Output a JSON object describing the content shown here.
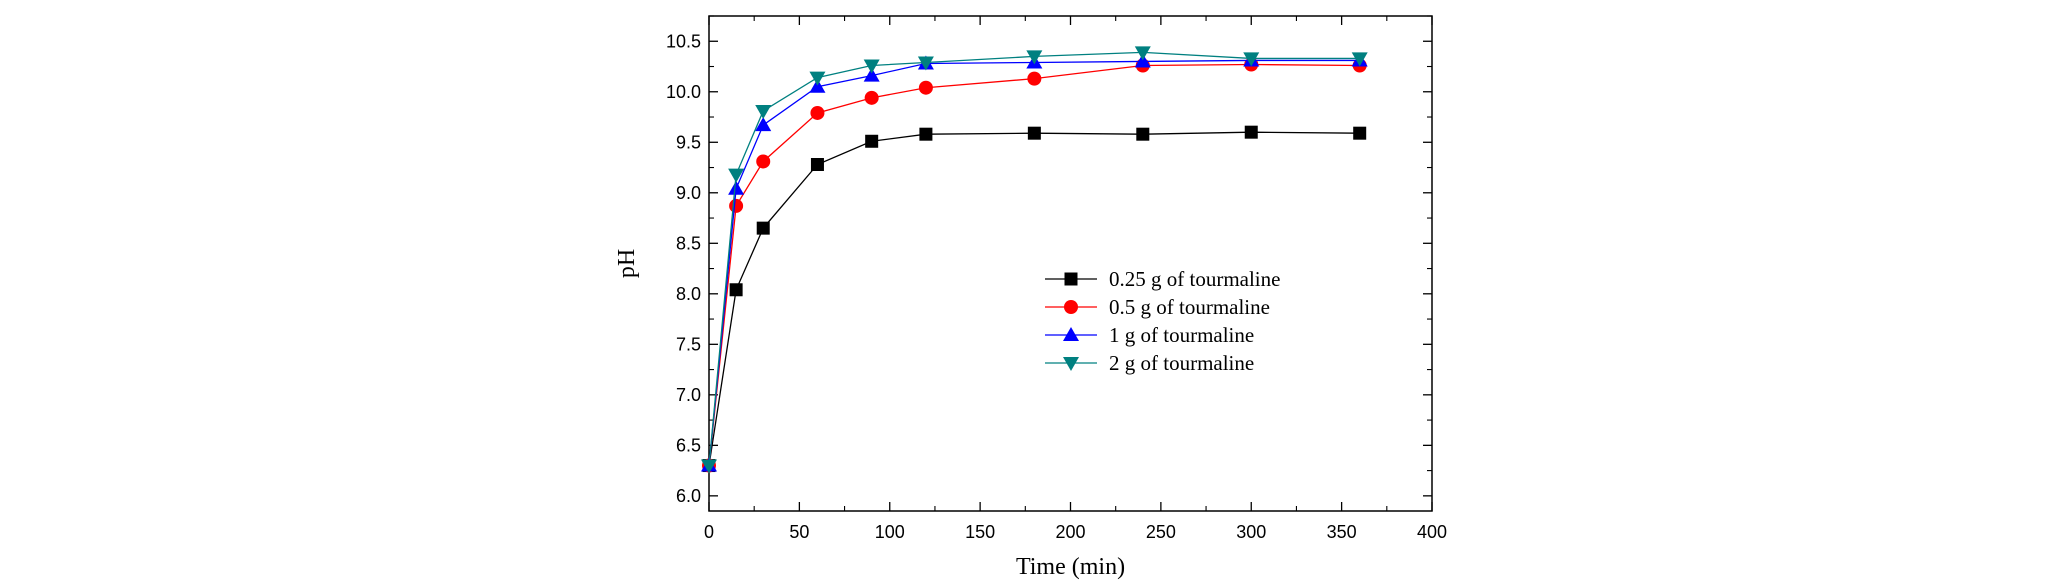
{
  "chart_data": {
    "type": "line",
    "title": "",
    "xlabel": "Time (min)",
    "ylabel": "pH",
    "xlim": [
      0,
      400
    ],
    "ylim": [
      5.85,
      10.75
    ],
    "xticks": [
      0,
      50,
      100,
      150,
      200,
      250,
      300,
      350,
      400
    ],
    "yticks": [
      6.0,
      6.5,
      7.0,
      7.5,
      8.0,
      8.5,
      9.0,
      9.5,
      10.0,
      10.5
    ],
    "grid": false,
    "legend_position": "center-right",
    "x": [
      0,
      15,
      30,
      60,
      90,
      120,
      180,
      240,
      300,
      360
    ],
    "series": [
      {
        "name": "0.25 g of tourmaline",
        "color": "#000000",
        "marker": "square",
        "values": [
          6.3,
          8.04,
          8.65,
          9.28,
          9.51,
          9.58,
          9.59,
          9.58,
          9.6,
          9.59
        ]
      },
      {
        "name": "0.5 g of tourmaline",
        "color": "#ff0000",
        "marker": "circle",
        "values": [
          6.3,
          8.87,
          9.31,
          9.79,
          9.94,
          10.04,
          10.13,
          10.26,
          10.27,
          10.26
        ]
      },
      {
        "name": "1 g of tourmaline",
        "color": "#0000ff",
        "marker": "triangle-up",
        "values": [
          6.3,
          9.04,
          9.67,
          10.05,
          10.16,
          10.28,
          10.29,
          10.3,
          10.31,
          10.31
        ]
      },
      {
        "name": "2 g of tourmaline",
        "color": "#008080",
        "marker": "triangle-down",
        "values": [
          6.3,
          9.18,
          9.81,
          10.14,
          10.26,
          10.29,
          10.35,
          10.39,
          10.33,
          10.33
        ]
      }
    ]
  }
}
